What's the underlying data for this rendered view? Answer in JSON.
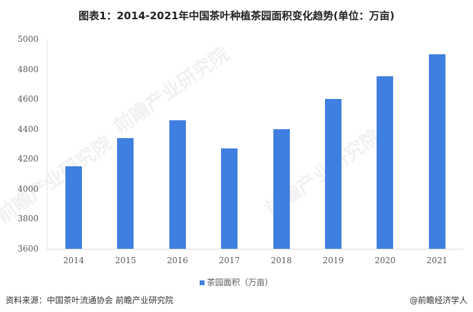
{
  "title": "图表1：2014-2021年中国茶叶种植茶园面积变化趋势(单位：万亩)",
  "chart_data": {
    "type": "bar",
    "title": "图表1：2014-2021年中国茶叶种植茶园面积变化趋势(单位：万亩)",
    "categories": [
      "2014",
      "2015",
      "2016",
      "2017",
      "2018",
      "2019",
      "2020",
      "2021"
    ],
    "series": [
      {
        "name": "茶园面积（万亩）",
        "values": [
          4150,
          4340,
          4460,
          4270,
          4400,
          4600,
          4750,
          4900
        ],
        "color": "#3f7fe0"
      }
    ],
    "xlabel": "",
    "ylabel": "",
    "ylim": [
      3600,
      5000
    ],
    "yticks": [
      3600,
      3800,
      4000,
      4200,
      4400,
      4600,
      4800,
      5000
    ],
    "grid": false,
    "legend_position": "bottom"
  },
  "legend": {
    "label": "茶园面积（万亩）"
  },
  "footer": {
    "source": "资料来源：中国茶叶流通协会 前瞻产业研究院",
    "credit": "@前瞻经济学人"
  },
  "watermark": {
    "text": "前瞻产业研究院"
  }
}
